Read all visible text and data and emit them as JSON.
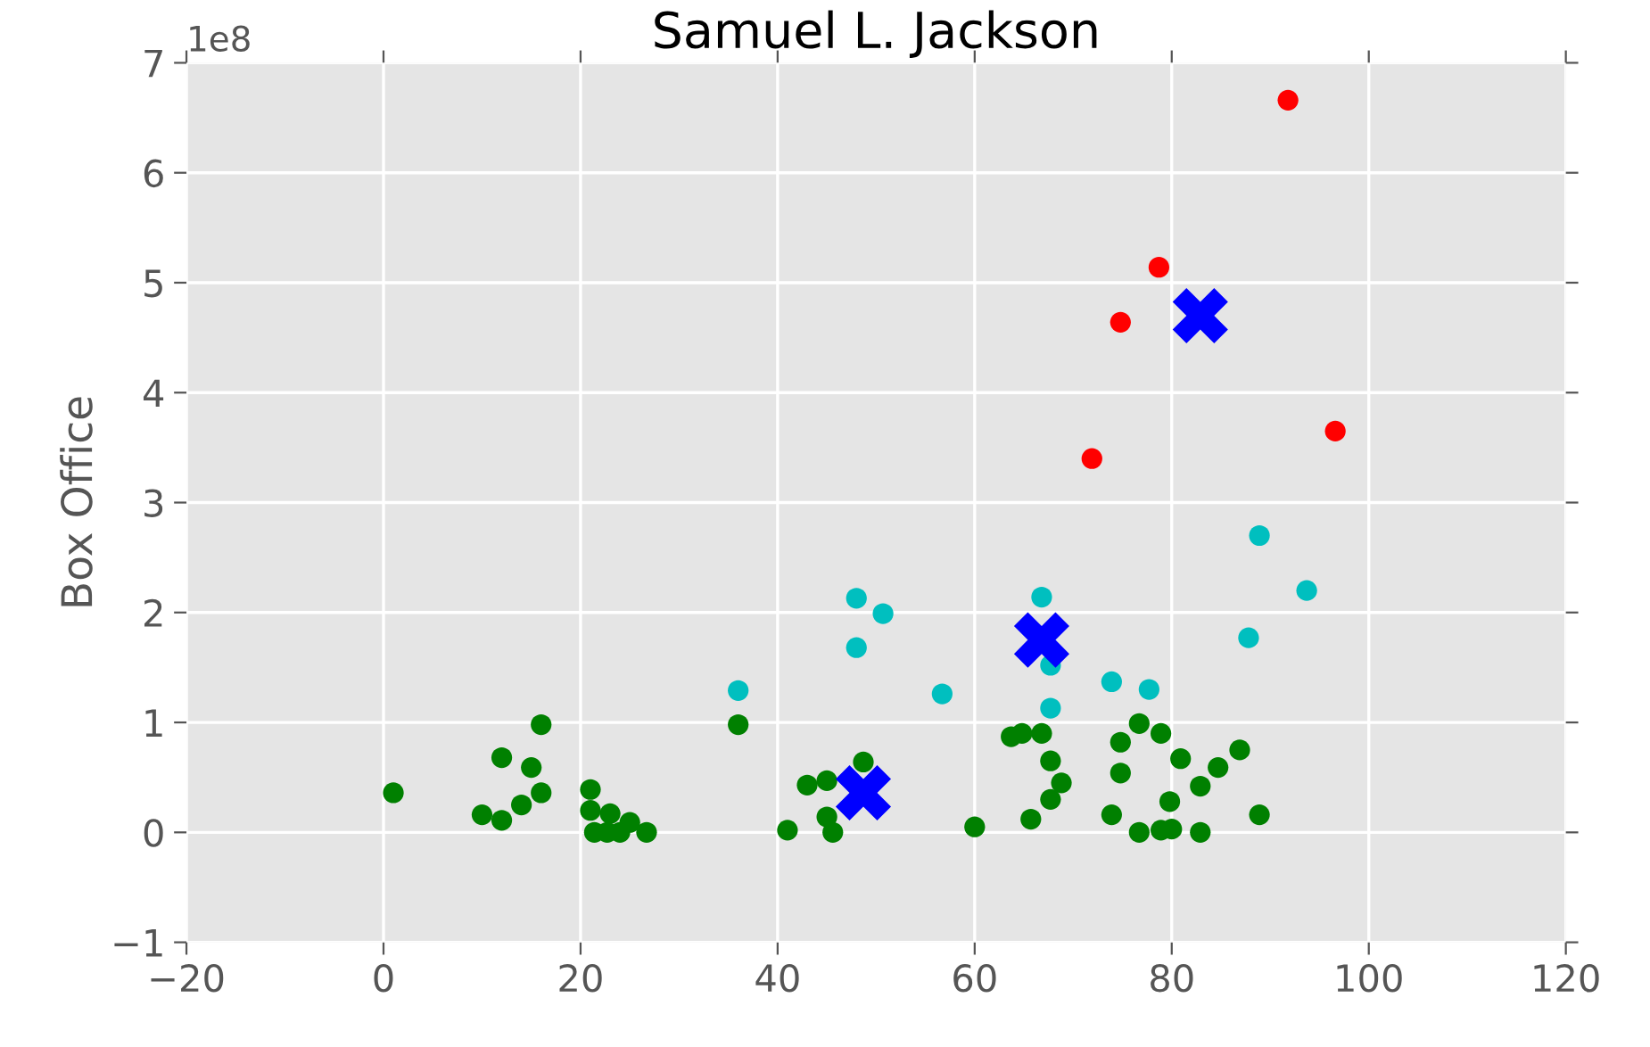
{
  "chart_data": {
    "type": "scatter",
    "title": "Samuel L. Jackson",
    "ylabel": "Box Office",
    "annotations": [
      "1e8"
    ],
    "series": [
      {
        "color": "#008000",
        "marker": "circle",
        "x": [
          1,
          10,
          12,
          12,
          14,
          15,
          16,
          16,
          21,
          21,
          23,
          25,
          21.4,
          22.7,
          24,
          26.7,
          36,
          41,
          43,
          45,
          45,
          45.6,
          48.7,
          60,
          63.7,
          64.8,
          66.8,
          67.7,
          68.8,
          67.7,
          65.7,
          74.8,
          74.8,
          73.9,
          76.7,
          78.9,
          80.9,
          82.9,
          79.8,
          76.7,
          78.9,
          80,
          82.9,
          84.7,
          86.9,
          88.9
        ],
        "values": [
          0.36,
          0.16,
          0.11,
          0.68,
          0.25,
          0.59,
          0.36,
          0.98,
          0.39,
          0.2,
          0.17,
          0.09,
          0,
          0,
          0,
          0,
          0.98,
          0.02,
          0.43,
          0.47,
          0.14,
          0,
          0.64,
          0.05,
          0.87,
          0.9,
          0.9,
          0.65,
          0.45,
          0.3,
          0.12,
          0.82,
          0.54,
          0.16,
          0.99,
          0.9,
          0.67,
          0.42,
          0.28,
          0,
          0.02,
          0.03,
          0,
          0.59,
          0.75,
          0.16
        ]
      },
      {
        "color": "#00bfbf",
        "marker": "circle",
        "x": [
          36,
          48,
          50.7,
          48,
          56.7,
          66.8,
          73.9,
          77.7,
          67.7,
          67.7,
          87.8,
          93.7,
          88.9
        ],
        "values": [
          1.29,
          2.13,
          1.99,
          1.68,
          1.26,
          2.14,
          1.37,
          1.3,
          1.13,
          1.52,
          1.77,
          2.2,
          2.7
        ]
      },
      {
        "color": "#ff0000",
        "marker": "circle",
        "x": [
          91.8,
          78.7,
          74.8,
          71.9,
          96.6
        ],
        "values": [
          6.66,
          5.14,
          4.64,
          3.4,
          3.65
        ]
      },
      {
        "color": "#0000ff",
        "marker": "cross",
        "x": [
          82.9,
          66.8,
          48.7
        ],
        "values": [
          4.7,
          1.75,
          0.36
        ]
      }
    ],
    "xlim": [
      -20,
      120
    ],
    "xticks": [
      -20,
      0,
      20,
      40,
      60,
      80,
      100,
      120
    ],
    "ylim": [
      -1,
      7
    ],
    "yticks": [
      -1,
      0,
      1,
      2,
      3,
      4,
      5,
      6,
      7
    ],
    "grid": true,
    "legend": false
  }
}
